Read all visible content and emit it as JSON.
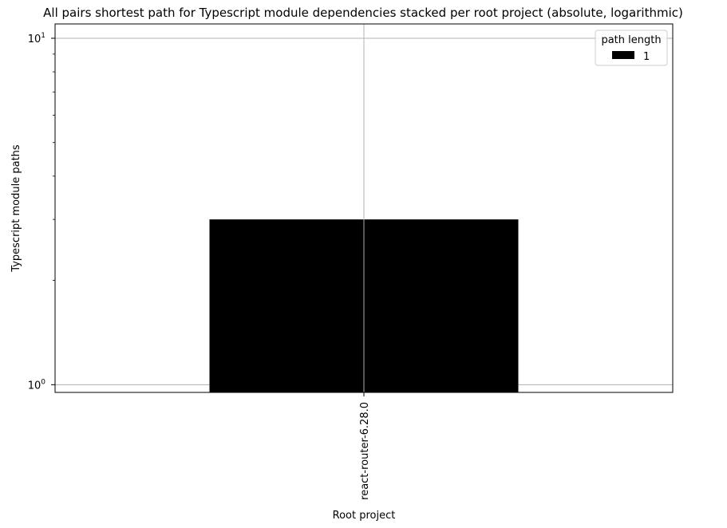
{
  "chart_data": {
    "type": "bar",
    "title": "All pairs shortest path for Typescript module dependencies stacked per root project (absolute, logarithmic)",
    "xlabel": "Root project",
    "ylabel": "Typescript module paths",
    "categories": [
      "react-router-6.28.0"
    ],
    "series": [
      {
        "name": "1",
        "values": [
          3
        ],
        "color": "#000000"
      }
    ],
    "yscale": "log",
    "ylim": [
      0.95,
      11
    ],
    "y_ticks": [
      {
        "value": 1,
        "label_base": "10",
        "label_exp": "0"
      },
      {
        "value": 10,
        "label_base": "10",
        "label_exp": "1"
      }
    ],
    "grid": true,
    "legend": {
      "title": "path length",
      "placement": "top-right"
    }
  }
}
